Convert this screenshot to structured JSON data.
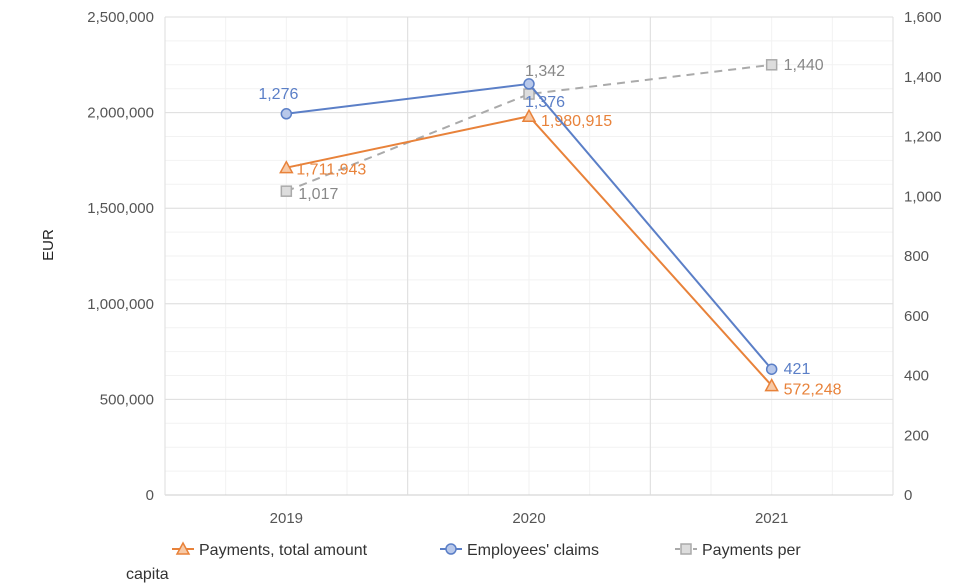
{
  "chart_data": {
    "type": "line",
    "categories": [
      "2019",
      "2020",
      "2021"
    ],
    "ylabel": "EUR",
    "y_left_lim": [
      0,
      2500000
    ],
    "y_left_ticks": [
      0,
      500000,
      1000000,
      1500000,
      2000000,
      2500000
    ],
    "y_left_tick_labels": [
      "0",
      "500,000",
      "1,000,000",
      "1,500,000",
      "2,000,000",
      "2,500,000"
    ],
    "y_right_lim": [
      0,
      1600
    ],
    "y_right_ticks": [
      0,
      200,
      400,
      600,
      800,
      1000,
      1200,
      1400,
      1600
    ],
    "y_right_tick_labels": [
      "0",
      "200",
      "400",
      "600",
      "800",
      "1,000",
      "1,200",
      "1,400",
      "1,600"
    ],
    "grid": true,
    "legend_position": "bottom",
    "series": [
      {
        "name": "Payments, total amount",
        "axis": "left",
        "values": [
          1711943,
          1980915,
          572248
        ],
        "labels": [
          "1,711,943",
          "1,980,915",
          "572,248"
        ],
        "color": "#e8823a",
        "marker": "triangle",
        "dashed": false
      },
      {
        "name": "Employees' claims",
        "axis": "right",
        "values": [
          1276,
          1376,
          421
        ],
        "labels": [
          "1,276",
          "1,376",
          "421"
        ],
        "color": "#5b7fc7",
        "marker": "circle",
        "dashed": false
      },
      {
        "name": "Payments per capita",
        "axis": "right",
        "values": [
          1017,
          1342,
          1440
        ],
        "labels": [
          "1,017",
          "1,342",
          "1,440"
        ],
        "color": "#aaaaaa",
        "marker": "square",
        "dashed": true
      }
    ],
    "legend": {
      "items": [
        "Payments, total amount",
        "Employees' claims",
        "Payments per"
      ],
      "wrap_text": "capita"
    }
  }
}
